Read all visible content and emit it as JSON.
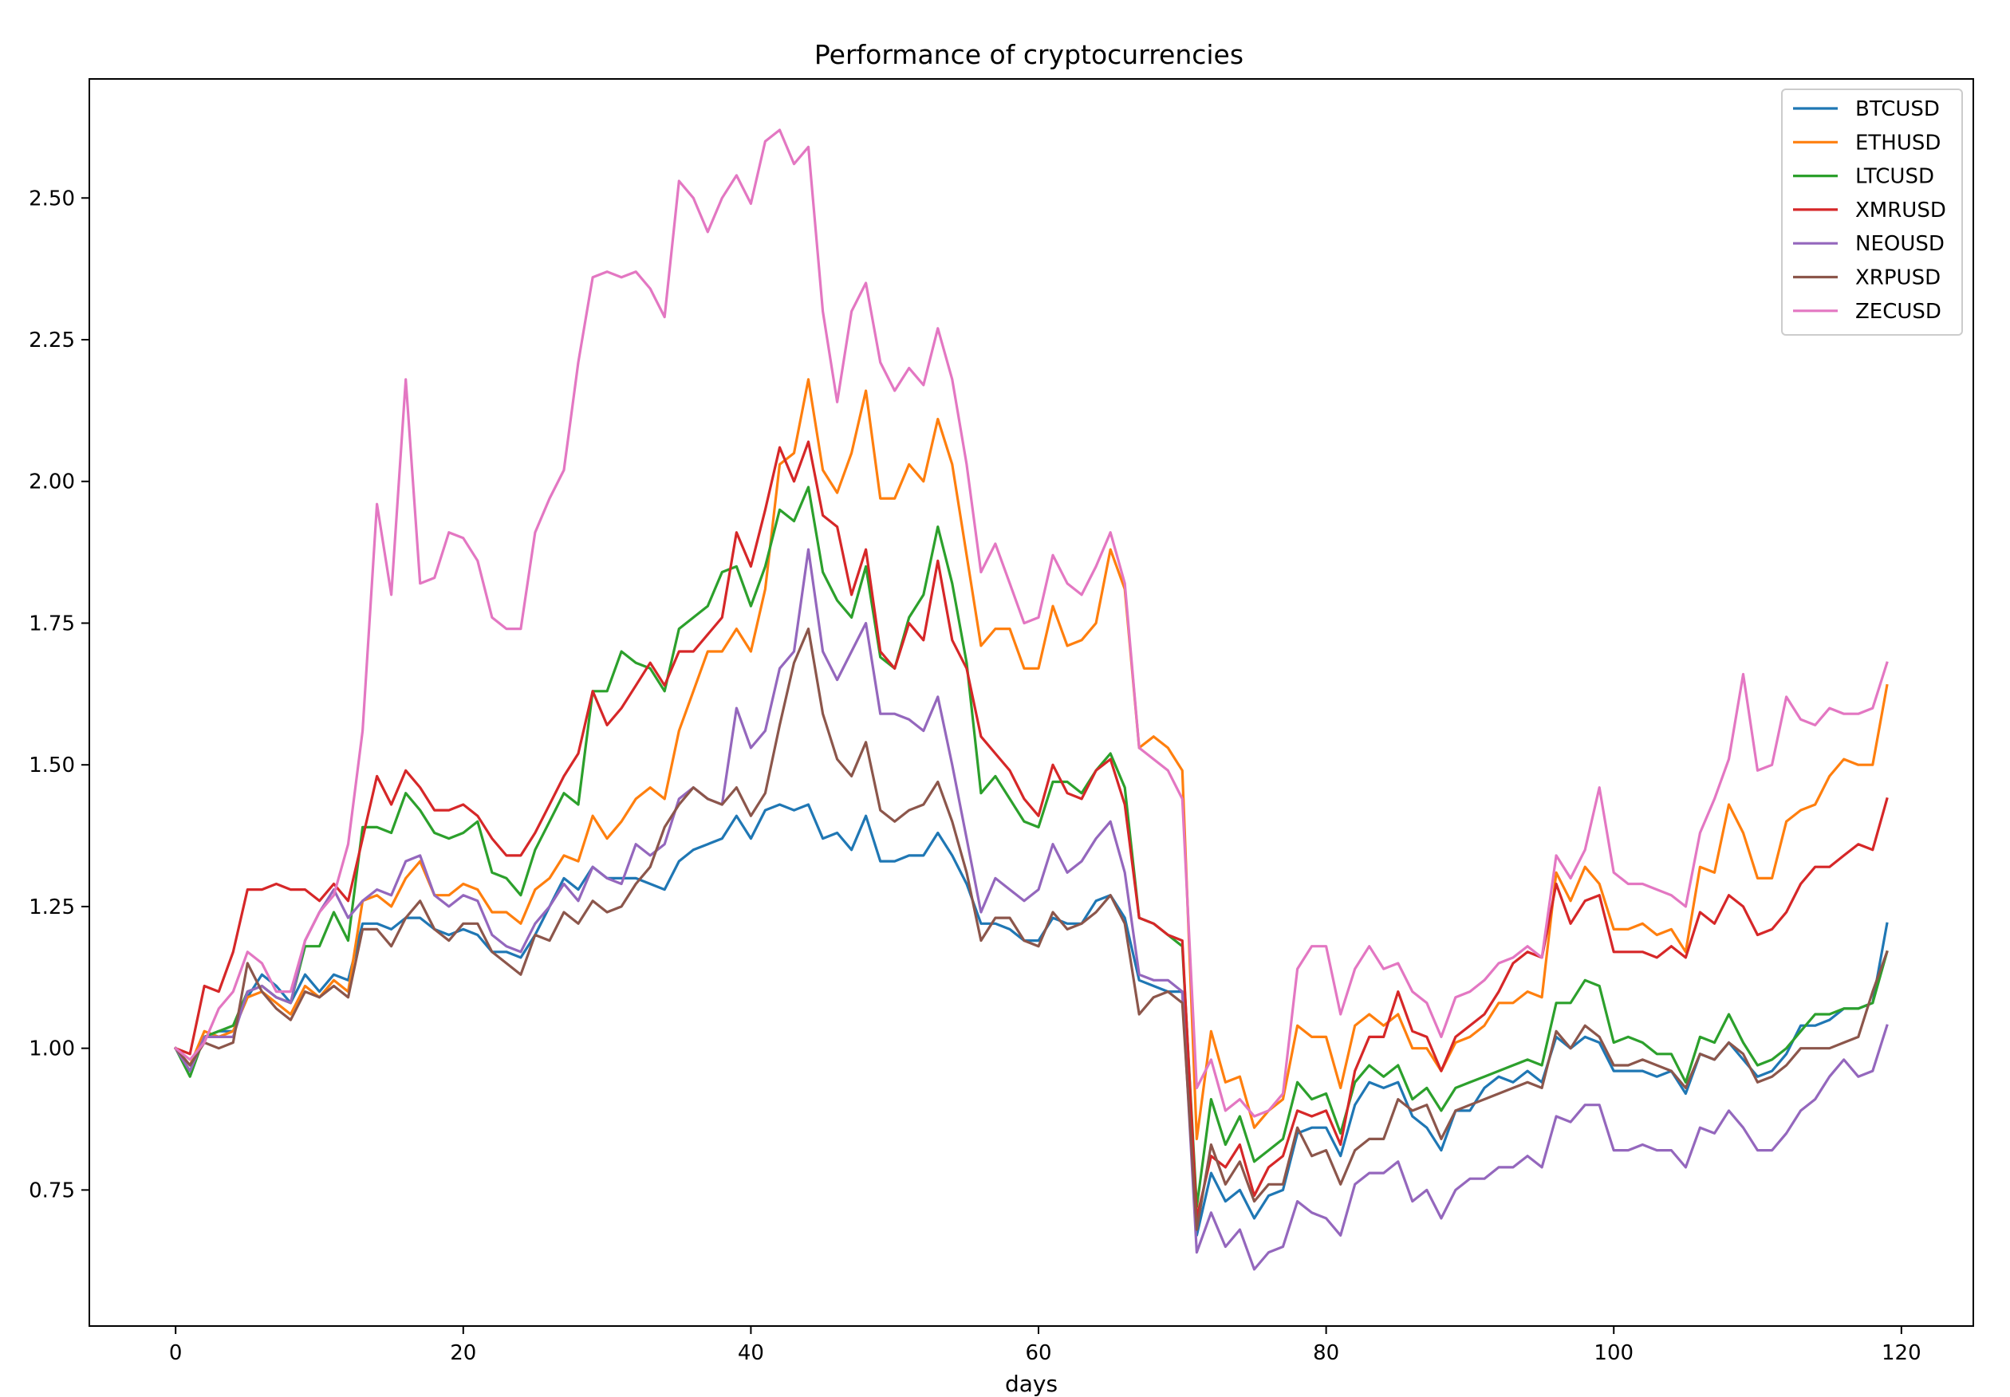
{
  "chart_data": {
    "type": "line",
    "title": "Performance of cryptocurrencies",
    "xlabel": "days",
    "ylabel": "",
    "xlim": [
      -6,
      125
    ],
    "ylim": [
      0.51,
      2.71
    ],
    "x_ticks": [
      0,
      20,
      40,
      60,
      80,
      100,
      120
    ],
    "y_ticks": [
      0.75,
      1.0,
      1.25,
      1.5,
      1.75,
      2.0,
      2.25,
      2.5
    ],
    "y_tick_labels": [
      "0.75",
      "1.00",
      "1.25",
      "1.50",
      "1.75",
      "2.00",
      "2.25",
      "2.50"
    ],
    "grid": false,
    "legend_position": "top-right",
    "series": [
      {
        "name": "BTCUSD",
        "color": "#1f77b4",
        "values": [
          1.0,
          0.96,
          1.02,
          1.03,
          1.03,
          1.09,
          1.13,
          1.11,
          1.08,
          1.13,
          1.1,
          1.13,
          1.12,
          1.22,
          1.22,
          1.21,
          1.23,
          1.23,
          1.21,
          1.2,
          1.21,
          1.2,
          1.17,
          1.17,
          1.16,
          1.2,
          1.25,
          1.3,
          1.28,
          1.32,
          1.3,
          1.3,
          1.3,
          1.29,
          1.28,
          1.33,
          1.35,
          1.36,
          1.37,
          1.41,
          1.37,
          1.42,
          1.43,
          1.42,
          1.43,
          1.37,
          1.38,
          1.35,
          1.41,
          1.33,
          1.33,
          1.34,
          1.34,
          1.38,
          1.34,
          1.29,
          1.22,
          1.22,
          1.21,
          1.19,
          1.19,
          1.23,
          1.22,
          1.22,
          1.26,
          1.27,
          1.23,
          1.12,
          1.11,
          1.1,
          1.1,
          0.67,
          0.78,
          0.73,
          0.75,
          0.7,
          0.74,
          0.75,
          0.85,
          0.86,
          0.86,
          0.81,
          0.9,
          0.94,
          0.93,
          0.94,
          0.88,
          0.86,
          0.82,
          0.89,
          0.89,
          0.93,
          0.95,
          0.94,
          0.96,
          0.94,
          1.02,
          1.0,
          1.02,
          1.01,
          0.96,
          0.96,
          0.96,
          0.95,
          0.96,
          0.92,
          0.99,
          0.98,
          1.01,
          0.98,
          0.95,
          0.96,
          0.99,
          1.04,
          1.04,
          1.05,
          1.07,
          1.07,
          1.08,
          1.22
        ]
      },
      {
        "name": "ETHUSD",
        "color": "#ff7f0e",
        "values": [
          1.0,
          0.97,
          1.03,
          1.02,
          1.03,
          1.09,
          1.1,
          1.08,
          1.06,
          1.11,
          1.09,
          1.12,
          1.1,
          1.26,
          1.27,
          1.25,
          1.3,
          1.33,
          1.27,
          1.27,
          1.29,
          1.28,
          1.24,
          1.24,
          1.22,
          1.28,
          1.3,
          1.34,
          1.33,
          1.41,
          1.37,
          1.4,
          1.44,
          1.46,
          1.44,
          1.56,
          1.63,
          1.7,
          1.7,
          1.74,
          1.7,
          1.81,
          2.03,
          2.05,
          2.18,
          2.02,
          1.98,
          2.05,
          2.16,
          1.97,
          1.97,
          2.03,
          2.0,
          2.11,
          2.03,
          1.87,
          1.71,
          1.74,
          1.74,
          1.67,
          1.67,
          1.78,
          1.71,
          1.72,
          1.75,
          1.88,
          1.81,
          1.53,
          1.55,
          1.53,
          1.49,
          0.84,
          1.03,
          0.94,
          0.95,
          0.86,
          0.89,
          0.91,
          1.04,
          1.02,
          1.02,
          0.93,
          1.04,
          1.06,
          1.04,
          1.06,
          1.0,
          1.0,
          0.96,
          1.01,
          1.02,
          1.04,
          1.08,
          1.08,
          1.1,
          1.09,
          1.31,
          1.26,
          1.32,
          1.29,
          1.21,
          1.21,
          1.22,
          1.2,
          1.21,
          1.17,
          1.32,
          1.31,
          1.43,
          1.38,
          1.3,
          1.3,
          1.4,
          1.42,
          1.43,
          1.48,
          1.51,
          1.5,
          1.5,
          1.64
        ]
      },
      {
        "name": "LTCUSD",
        "color": "#2ca02c",
        "values": [
          1.0,
          0.95,
          1.02,
          1.03,
          1.04,
          1.1,
          1.11,
          1.09,
          1.08,
          1.18,
          1.18,
          1.24,
          1.19,
          1.39,
          1.39,
          1.38,
          1.45,
          1.42,
          1.38,
          1.37,
          1.38,
          1.4,
          1.31,
          1.3,
          1.27,
          1.35,
          1.4,
          1.45,
          1.43,
          1.63,
          1.63,
          1.7,
          1.68,
          1.67,
          1.63,
          1.74,
          1.76,
          1.78,
          1.84,
          1.85,
          1.78,
          1.85,
          1.95,
          1.93,
          1.99,
          1.84,
          1.79,
          1.76,
          1.85,
          1.69,
          1.67,
          1.76,
          1.8,
          1.92,
          1.82,
          1.68,
          1.45,
          1.48,
          1.44,
          1.4,
          1.39,
          1.47,
          1.47,
          1.45,
          1.49,
          1.52,
          1.46,
          1.23,
          1.22,
          1.2,
          1.18,
          0.72,
          0.91,
          0.83,
          0.88,
          0.8,
          0.82,
          0.84,
          0.94,
          0.91,
          0.92,
          0.85,
          0.94,
          0.97,
          0.95,
          0.97,
          0.91,
          0.93,
          0.89,
          0.93,
          0.94,
          0.95,
          0.96,
          0.97,
          0.98,
          0.97,
          1.08,
          1.08,
          1.12,
          1.11,
          1.01,
          1.02,
          1.01,
          0.99,
          0.99,
          0.94,
          1.02,
          1.01,
          1.06,
          1.01,
          0.97,
          0.98,
          1.0,
          1.03,
          1.06,
          1.06,
          1.07,
          1.07,
          1.08,
          1.17
        ]
      },
      {
        "name": "XMRUSD",
        "color": "#d62728",
        "values": [
          1.0,
          0.99,
          1.11,
          1.1,
          1.17,
          1.28,
          1.28,
          1.29,
          1.28,
          1.28,
          1.26,
          1.29,
          1.26,
          1.37,
          1.48,
          1.43,
          1.49,
          1.46,
          1.42,
          1.42,
          1.43,
          1.41,
          1.37,
          1.34,
          1.34,
          1.38,
          1.43,
          1.48,
          1.52,
          1.63,
          1.57,
          1.6,
          1.64,
          1.68,
          1.64,
          1.7,
          1.7,
          1.73,
          1.76,
          1.91,
          1.85,
          1.95,
          2.06,
          2.0,
          2.07,
          1.94,
          1.92,
          1.8,
          1.88,
          1.7,
          1.67,
          1.75,
          1.72,
          1.86,
          1.72,
          1.67,
          1.55,
          1.52,
          1.49,
          1.44,
          1.41,
          1.5,
          1.45,
          1.44,
          1.49,
          1.51,
          1.43,
          1.23,
          1.22,
          1.2,
          1.19,
          0.7,
          0.81,
          0.79,
          0.83,
          0.74,
          0.79,
          0.81,
          0.89,
          0.88,
          0.89,
          0.83,
          0.96,
          1.02,
          1.02,
          1.1,
          1.03,
          1.02,
          0.96,
          1.02,
          1.04,
          1.06,
          1.1,
          1.15,
          1.17,
          1.16,
          1.29,
          1.22,
          1.26,
          1.27,
          1.17,
          1.17,
          1.17,
          1.16,
          1.18,
          1.16,
          1.24,
          1.22,
          1.27,
          1.25,
          1.2,
          1.21,
          1.24,
          1.29,
          1.32,
          1.32,
          1.34,
          1.36,
          1.35,
          1.44
        ]
      },
      {
        "name": "NEOUSD",
        "color": "#9467bd",
        "values": [
          1.0,
          0.96,
          1.02,
          1.02,
          1.02,
          1.1,
          1.11,
          1.09,
          1.08,
          1.19,
          1.24,
          1.28,
          1.23,
          1.26,
          1.28,
          1.27,
          1.33,
          1.34,
          1.27,
          1.25,
          1.27,
          1.26,
          1.2,
          1.18,
          1.17,
          1.22,
          1.25,
          1.29,
          1.26,
          1.32,
          1.3,
          1.29,
          1.36,
          1.34,
          1.36,
          1.44,
          1.46,
          1.44,
          1.43,
          1.6,
          1.53,
          1.56,
          1.67,
          1.7,
          1.88,
          1.7,
          1.65,
          1.7,
          1.75,
          1.59,
          1.59,
          1.58,
          1.56,
          1.62,
          1.5,
          1.37,
          1.24,
          1.3,
          1.28,
          1.26,
          1.28,
          1.36,
          1.31,
          1.33,
          1.37,
          1.4,
          1.31,
          1.13,
          1.12,
          1.12,
          1.1,
          0.64,
          0.71,
          0.65,
          0.68,
          0.61,
          0.64,
          0.65,
          0.73,
          0.71,
          0.7,
          0.67,
          0.76,
          0.78,
          0.78,
          0.8,
          0.73,
          0.75,
          0.7,
          0.75,
          0.77,
          0.77,
          0.79,
          0.79,
          0.81,
          0.79,
          0.88,
          0.87,
          0.9,
          0.9,
          0.82,
          0.82,
          0.83,
          0.82,
          0.82,
          0.79,
          0.86,
          0.85,
          0.89,
          0.86,
          0.82,
          0.82,
          0.85,
          0.89,
          0.91,
          0.95,
          0.98,
          0.95,
          0.96,
          1.04
        ]
      },
      {
        "name": "XRPUSD",
        "color": "#8c564b",
        "values": [
          1.0,
          0.97,
          1.01,
          1.0,
          1.01,
          1.15,
          1.1,
          1.07,
          1.05,
          1.1,
          1.09,
          1.11,
          1.09,
          1.21,
          1.21,
          1.18,
          1.23,
          1.26,
          1.21,
          1.19,
          1.22,
          1.22,
          1.17,
          1.15,
          1.13,
          1.2,
          1.19,
          1.24,
          1.22,
          1.26,
          1.24,
          1.25,
          1.29,
          1.32,
          1.39,
          1.43,
          1.46,
          1.44,
          1.43,
          1.46,
          1.41,
          1.45,
          1.57,
          1.68,
          1.74,
          1.59,
          1.51,
          1.48,
          1.54,
          1.42,
          1.4,
          1.42,
          1.43,
          1.47,
          1.4,
          1.31,
          1.19,
          1.23,
          1.23,
          1.19,
          1.18,
          1.24,
          1.21,
          1.22,
          1.24,
          1.27,
          1.22,
          1.06,
          1.09,
          1.1,
          1.08,
          0.68,
          0.83,
          0.76,
          0.8,
          0.73,
          0.76,
          0.76,
          0.86,
          0.81,
          0.82,
          0.76,
          0.82,
          0.84,
          0.84,
          0.91,
          0.89,
          0.9,
          0.84,
          0.89,
          0.9,
          0.91,
          0.92,
          0.93,
          0.94,
          0.93,
          1.03,
          1.0,
          1.04,
          1.02,
          0.97,
          0.97,
          0.98,
          0.97,
          0.96,
          0.93,
          0.99,
          0.98,
          1.01,
          0.99,
          0.94,
          0.95,
          0.97,
          1.0,
          1.0,
          1.0,
          1.01,
          1.02,
          1.1,
          1.17
        ]
      },
      {
        "name": "ZECUSD",
        "color": "#e377c2",
        "values": [
          1.0,
          0.98,
          1.01,
          1.07,
          1.1,
          1.17,
          1.15,
          1.1,
          1.1,
          1.19,
          1.24,
          1.27,
          1.36,
          1.56,
          1.96,
          1.8,
          2.18,
          1.82,
          1.83,
          1.91,
          1.9,
          1.86,
          1.76,
          1.74,
          1.74,
          1.91,
          1.97,
          2.02,
          2.21,
          2.36,
          2.37,
          2.36,
          2.37,
          2.34,
          2.29,
          2.53,
          2.5,
          2.44,
          2.5,
          2.54,
          2.49,
          2.6,
          2.62,
          2.56,
          2.59,
          2.3,
          2.14,
          2.3,
          2.35,
          2.21,
          2.16,
          2.2,
          2.17,
          2.27,
          2.18,
          2.03,
          1.84,
          1.89,
          1.82,
          1.75,
          1.76,
          1.87,
          1.82,
          1.8,
          1.85,
          1.91,
          1.82,
          1.53,
          1.51,
          1.49,
          1.44,
          0.93,
          0.98,
          0.89,
          0.91,
          0.88,
          0.89,
          0.92,
          1.14,
          1.18,
          1.18,
          1.06,
          1.14,
          1.18,
          1.14,
          1.15,
          1.1,
          1.08,
          1.02,
          1.09,
          1.1,
          1.12,
          1.15,
          1.16,
          1.18,
          1.16,
          1.34,
          1.3,
          1.35,
          1.46,
          1.31,
          1.29,
          1.29,
          1.28,
          1.27,
          1.25,
          1.38,
          1.44,
          1.51,
          1.66,
          1.49,
          1.5,
          1.62,
          1.58,
          1.57,
          1.6,
          1.59,
          1.59,
          1.6,
          1.68
        ]
      }
    ]
  }
}
